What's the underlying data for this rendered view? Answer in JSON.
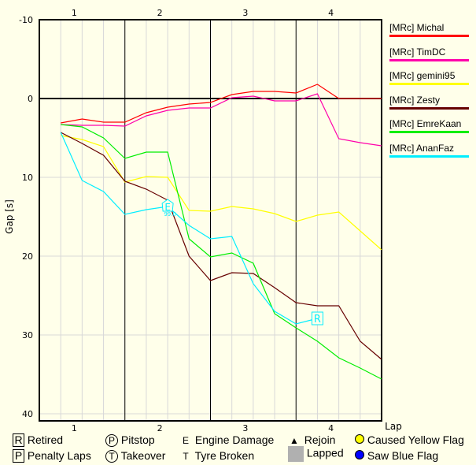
{
  "chart_data": {
    "type": "line",
    "xlabel": "Lap",
    "ylabel": "Gap [s]",
    "x": [
      0.25,
      0.5,
      0.75,
      1,
      1.25,
      1.5,
      1.75,
      2,
      2.25,
      2.5,
      2.75,
      3,
      3.25,
      3.5,
      3.75,
      4
    ],
    "xlim": [
      0,
      4
    ],
    "x_tick_labels": [
      "1",
      "2",
      "3",
      "4"
    ],
    "ylim": [
      -10,
      40
    ],
    "y_inverted": true,
    "y_ticks": [
      -10,
      0,
      10,
      20,
      30,
      40
    ],
    "grid": true,
    "legend_placement": "right",
    "series": [
      {
        "name": "[MRc] Michal",
        "color": "#ff0000",
        "values": [
          3.1,
          2.6,
          3.0,
          3.0,
          1.8,
          1.1,
          0.7,
          0.5,
          -0.5,
          -0.9,
          -0.9,
          -0.7,
          -1.8,
          0,
          0,
          0
        ]
      },
      {
        "name": "[MRc] TimDC",
        "color": "#ff00aa",
        "values": [
          3.3,
          3.4,
          3.4,
          3.5,
          2.2,
          1.5,
          1.2,
          1.2,
          -0.1,
          -0.3,
          0.3,
          0.3,
          -0.6,
          5.1,
          5.6,
          6.0
        ]
      },
      {
        "name": "[MRc] gemini95",
        "color": "#ffff00",
        "values": [
          4.7,
          5.2,
          6.1,
          10.6,
          9.9,
          10.0,
          14.2,
          14.3,
          13.7,
          14.0,
          14.6,
          15.6,
          14.8,
          14.4,
          16.8,
          19.2
        ]
      },
      {
        "name": "[MRc] Zesty",
        "color": "#660000",
        "values": [
          4.3,
          5.7,
          7.2,
          10.5,
          11.5,
          12.9,
          20.0,
          23.1,
          22.1,
          22.2,
          24.0,
          25.9,
          26.3,
          26.3,
          30.8,
          33.1
        ]
      },
      {
        "name": "[MRc] EmreKaan",
        "color": "#00ee00",
        "values": [
          3.3,
          3.6,
          5.0,
          7.6,
          6.8,
          6.8,
          17.8,
          20.1,
          19.6,
          20.9,
          27.3,
          29.1,
          30.8,
          32.9,
          34.2,
          35.6
        ]
      },
      {
        "name": "[MRc] AnanFaz",
        "color": "#00eeff",
        "values": [
          4.3,
          10.4,
          11.8,
          14.7,
          14.1,
          13.7,
          16.1,
          17.8,
          17.5,
          23.5,
          27.0,
          28.6,
          27.9,
          null,
          null,
          null
        ]
      }
    ],
    "annotations": [
      {
        "series": "[MRc] AnanFaz",
        "x": 1.5,
        "y": 13.7,
        "marker": "E",
        "label": "99.0"
      },
      {
        "series": "[MRc] AnanFaz",
        "x": 3.25,
        "y": 27.9,
        "marker": "R"
      }
    ]
  },
  "key": {
    "retired": {
      "glyph": "R",
      "label": "Retired"
    },
    "penalty": {
      "glyph": "P",
      "label": "Penalty Laps"
    },
    "pitstop": {
      "glyph": "P",
      "label": "Pitstop"
    },
    "takeover": {
      "glyph": "T",
      "label": "Takeover"
    },
    "engine": {
      "glyph": "E",
      "label": "Engine Damage"
    },
    "tyre": {
      "glyph": "T",
      "label": "Tyre Broken"
    },
    "rejoin": {
      "label": "Rejoin"
    },
    "lapped": {
      "label": "Lapped",
      "color": "#b0b0b0"
    },
    "yellow": {
      "label": "Caused Yellow Flag",
      "color": "#ffff00"
    },
    "blue": {
      "label": "Saw Blue Flag",
      "color": "#0000ff"
    }
  }
}
